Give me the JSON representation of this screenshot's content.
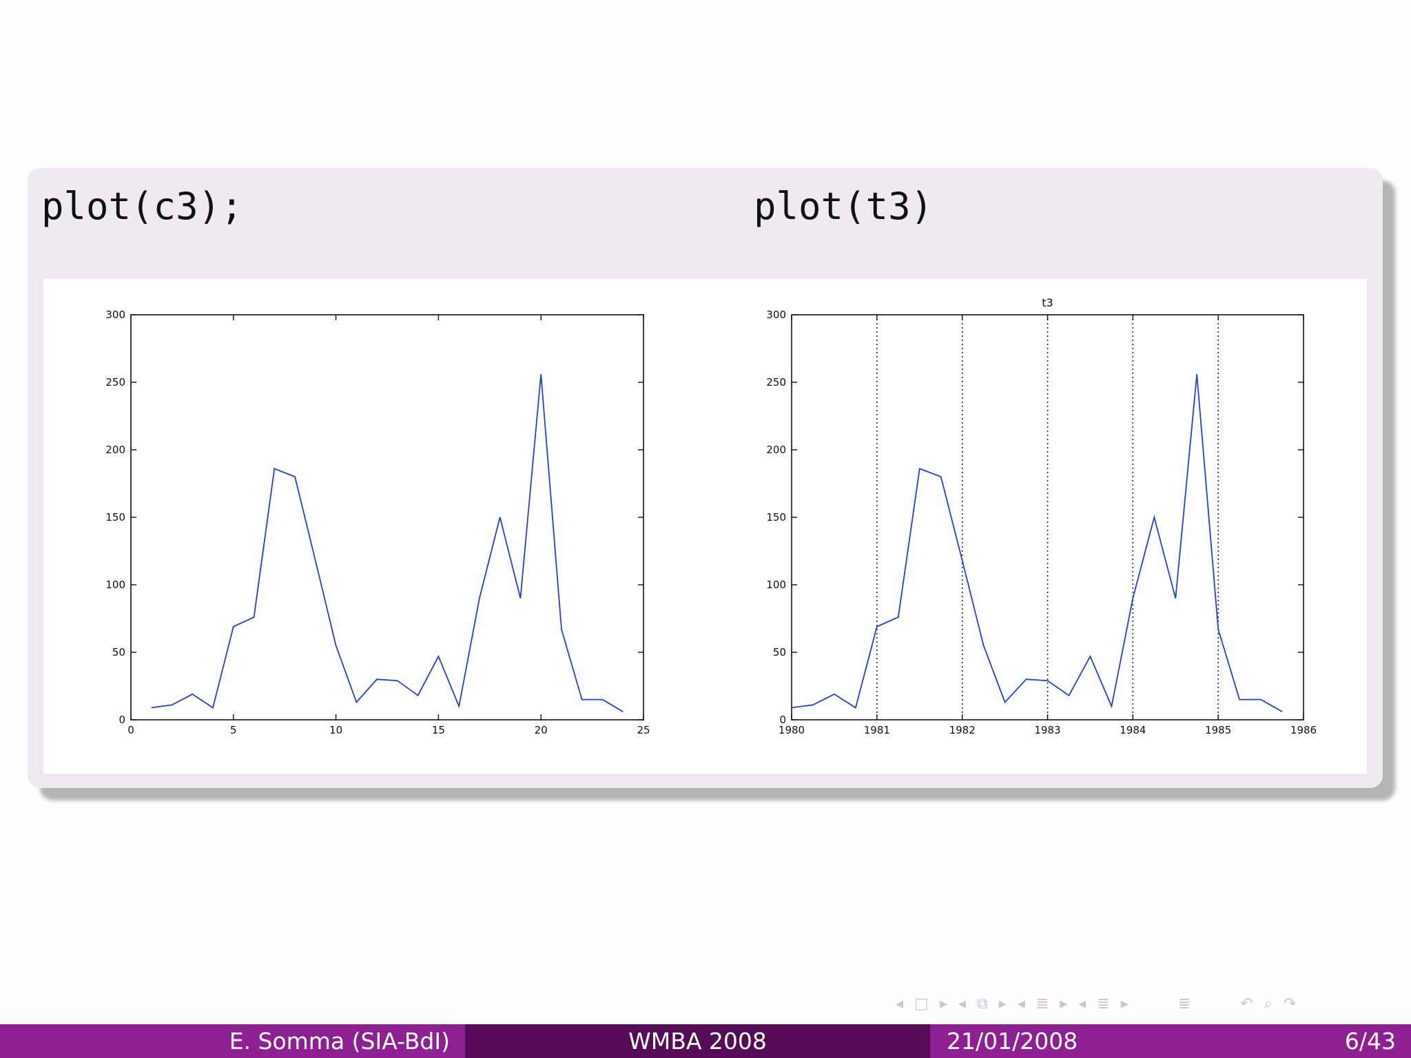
{
  "slide": {
    "left_code": "plot(c3);",
    "right_code": "plot(t3)"
  },
  "footer": {
    "author": "E. Somma (SIA-BdI)",
    "event": "WMBA 2008",
    "date": "21/01/2008",
    "page": "6/43"
  },
  "nav_icons": [
    "prev-icon",
    "frame-icon",
    "next-icon",
    "prev-icon",
    "subsection-icon",
    "next-icon",
    "prev-icon",
    "section-icon",
    "next-icon",
    "prev-icon",
    "align-icon",
    "next-icon",
    "align-icon",
    "undo-icon",
    "search-icon",
    "redo-icon"
  ],
  "colors": {
    "line": "#1f3fdc",
    "footer_light": "#8f2093",
    "footer_dark": "#550b55",
    "block_bg": "#efe9f2"
  },
  "chart_data": [
    {
      "type": "line",
      "title": "",
      "xlabel": "",
      "ylabel": "",
      "x": [
        1,
        2,
        3,
        4,
        5,
        6,
        7,
        8,
        9,
        10,
        11,
        12,
        13,
        14,
        15,
        16,
        17,
        18,
        19,
        20,
        21,
        22,
        23,
        24
      ],
      "values": [
        9,
        11,
        19,
        9,
        69,
        76,
        186,
        180,
        118,
        55,
        13,
        30,
        29,
        18,
        47,
        10,
        90,
        150,
        90,
        256,
        67,
        15,
        15,
        6
      ],
      "xlim": [
        0,
        25
      ],
      "ylim": [
        0,
        300
      ],
      "xticks": [
        "0",
        "5",
        "10",
        "15",
        "20",
        "25"
      ],
      "yticks": [
        "0",
        "50",
        "100",
        "150",
        "200",
        "250",
        "300"
      ],
      "grid": false
    },
    {
      "type": "line",
      "title": "t3",
      "xlabel": "",
      "ylabel": "",
      "x": [
        1980,
        1980.25,
        1980.5,
        1980.75,
        1981,
        1981.25,
        1981.5,
        1981.75,
        1982,
        1982.25,
        1982.5,
        1982.75,
        1983,
        1983.25,
        1983.5,
        1983.75,
        1984,
        1984.25,
        1984.5,
        1984.75,
        1985,
        1985.25,
        1985.5,
        1985.75
      ],
      "values": [
        9,
        11,
        19,
        9,
        69,
        76,
        186,
        180,
        118,
        55,
        13,
        30,
        29,
        18,
        47,
        10,
        90,
        150,
        90,
        256,
        67,
        15,
        15,
        6
      ],
      "xlim": [
        1980,
        1986
      ],
      "ylim": [
        0,
        300
      ],
      "xticks": [
        "1980",
        "1981",
        "1982",
        "1983",
        "1984",
        "1985",
        "1986"
      ],
      "yticks": [
        "0",
        "50",
        "100",
        "150",
        "200",
        "250",
        "300"
      ],
      "grid": "vertical-dotted"
    }
  ]
}
